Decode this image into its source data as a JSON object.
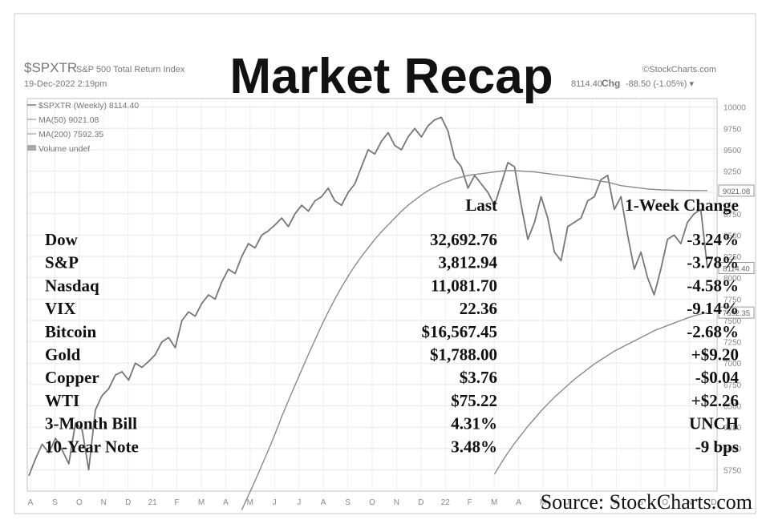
{
  "header": {
    "symbol": "$SPXTR",
    "index_name": "S&P 500 Total Return Index",
    "date": "19-Dec-2022 2:19pm",
    "brand": "©StockCharts.com",
    "last_value": "8114.40",
    "change_label": "Chg",
    "change_value": "-88.50 (-1.05%) ▾"
  },
  "title": "Market Recap",
  "source": "Source: StockCharts.com",
  "legend": [
    {
      "text": "$SPXTR (Weekly) 8114.40",
      "color": "#777777"
    },
    {
      "text": "MA(50) 9021.08",
      "color": "#999999"
    },
    {
      "text": "MA(200) 7592.35",
      "color": "#999999"
    },
    {
      "text": "Volume undef",
      "color": "#999999"
    }
  ],
  "table": {
    "headers": [
      "Last",
      "1-Week Change"
    ],
    "rows": [
      {
        "name": "Dow",
        "last": "32,692.76",
        "change": "-3.24%"
      },
      {
        "name": "S&P",
        "last": "3,812.94",
        "change": "-3.78%"
      },
      {
        "name": "Nasdaq",
        "last": "11,081.70",
        "change": "-4.58%"
      },
      {
        "name": "VIX",
        "last": "22.36",
        "change": "-9.14%"
      },
      {
        "name": "Bitcoin",
        "last": "$16,567.45",
        "change": "-2.68%"
      },
      {
        "name": "Gold",
        "last": "$1,788.00",
        "change": "+$9.20"
      },
      {
        "name": "Copper",
        "last": "$3.76",
        "change": "-$0.04"
      },
      {
        "name": "WTI",
        "last": "$75.22",
        "change": "+$2.26"
      },
      {
        "name": "3-Month Bill",
        "last": "4.31%",
        "change": "UNCH"
      },
      {
        "name": "10-Year Note",
        "last": "3.48%",
        "change": "-9 bps"
      }
    ]
  },
  "price_badges": [
    "9021.08",
    "8114.40",
    "7592.35"
  ],
  "chart_data": {
    "type": "line",
    "ylim": [
      5500,
      10100
    ],
    "y_ticks": [
      10000,
      9750,
      9500,
      9250,
      9000,
      8750,
      8500,
      8250,
      8000,
      7750,
      7500,
      7250,
      7000,
      6750,
      6500,
      6250,
      6000,
      5750
    ],
    "x_ticks": [
      "A",
      "S",
      "O",
      "N",
      "D",
      "21",
      "F",
      "M",
      "A",
      "M",
      "J",
      "J",
      "A",
      "S",
      "O",
      "N",
      "D",
      "22",
      "F",
      "M",
      "A",
      "M",
      "J",
      "J",
      "A",
      "S",
      "O",
      "N",
      "D"
    ],
    "grid": true,
    "series": [
      {
        "name": "$SPXTR (Weekly)",
        "color": "#777777",
        "values": [
          5680,
          5880,
          6050,
          5950,
          6120,
          5980,
          5820,
          6300,
          6220,
          5750,
          6450,
          6620,
          6700,
          6860,
          6900,
          6800,
          7000,
          6950,
          7020,
          7100,
          7250,
          7300,
          7180,
          7500,
          7600,
          7550,
          7700,
          7800,
          7750,
          7950,
          8100,
          8050,
          8250,
          8400,
          8350,
          8500,
          8550,
          8620,
          8700,
          8600,
          8750,
          8850,
          8780,
          8900,
          8950,
          9050,
          8900,
          8850,
          9000,
          9100,
          9300,
          9500,
          9450,
          9600,
          9700,
          9550,
          9500,
          9650,
          9750,
          9650,
          9780,
          9850,
          9880,
          9720,
          9400,
          9300,
          9050,
          9200,
          9100,
          9000,
          8850,
          9100,
          9350,
          9300,
          8850,
          8450,
          8650,
          8950,
          8700,
          8300,
          8200,
          8600,
          8650,
          8700,
          8900,
          8950,
          9150,
          9200,
          8800,
          8950,
          8500,
          8100,
          8300,
          8000,
          7800,
          8100,
          8450,
          8500,
          8400,
          8650,
          8750,
          8800,
          8114
        ]
      },
      {
        "name": "MA(50)",
        "color": "#8a8a8a",
        "values": [
          null,
          null,
          null,
          null,
          null,
          null,
          null,
          null,
          null,
          null,
          null,
          null,
          null,
          null,
          null,
          null,
          null,
          null,
          null,
          null,
          null,
          null,
          null,
          null,
          null,
          null,
          null,
          null,
          null,
          null,
          null,
          null,
          5280,
          5450,
          5620,
          5800,
          5980,
          6170,
          6370,
          6560,
          6740,
          6920,
          7100,
          7270,
          7440,
          7600,
          7750,
          7890,
          8020,
          8140,
          8250,
          8350,
          8450,
          8540,
          8620,
          8700,
          8780,
          8850,
          8910,
          8970,
          9020,
          9060,
          9100,
          9130,
          9160,
          9180,
          9200,
          9210,
          9220,
          9230,
          9240,
          9250,
          9255,
          9255,
          9250,
          9245,
          9240,
          9230,
          9220,
          9210,
          9200,
          9190,
          9180,
          9170,
          9160,
          9150,
          9130,
          9120,
          9100,
          9080,
          9070,
          9060,
          9050,
          9040,
          9035,
          9030,
          9028,
          9025,
          9024,
          9023,
          9022,
          9022,
          9021
        ]
      },
      {
        "name": "MA(200)",
        "color": "#8a8a8a",
        "values": [
          null,
          null,
          null,
          null,
          null,
          null,
          null,
          null,
          null,
          null,
          null,
          null,
          null,
          null,
          null,
          null,
          null,
          null,
          null,
          null,
          null,
          null,
          null,
          null,
          null,
          null,
          null,
          null,
          null,
          null,
          null,
          null,
          null,
          null,
          null,
          null,
          null,
          null,
          null,
          null,
          null,
          null,
          null,
          null,
          null,
          null,
          null,
          null,
          null,
          null,
          null,
          null,
          null,
          null,
          null,
          null,
          null,
          null,
          null,
          null,
          null,
          null,
          null,
          null,
          null,
          null,
          null,
          null,
          null,
          null,
          5700,
          5830,
          5950,
          6060,
          6160,
          6260,
          6350,
          6440,
          6520,
          6600,
          6670,
          6740,
          6810,
          6870,
          6930,
          6990,
          7040,
          7090,
          7140,
          7180,
          7220,
          7260,
          7300,
          7340,
          7380,
          7410,
          7440,
          7470,
          7500,
          7530,
          7555,
          7575,
          7592
        ]
      }
    ]
  }
}
